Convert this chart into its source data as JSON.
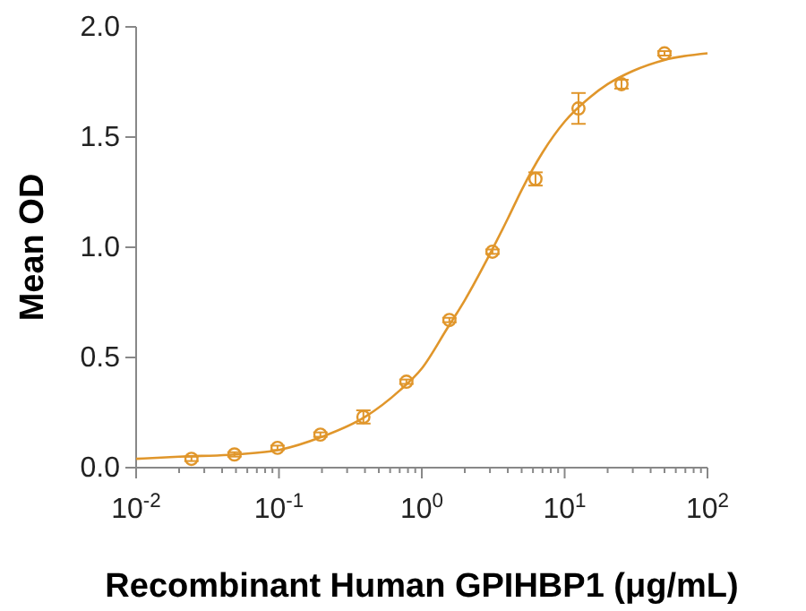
{
  "chart_data": {
    "type": "scatter",
    "xlabel": "Recombinant Human GPIHBP1 (μg/mL)",
    "ylabel": "Mean OD",
    "log": "x",
    "grid": false,
    "xlim": [
      0.01,
      100
    ],
    "ylim": [
      0,
      2
    ],
    "xticks": [
      {
        "value": 0.01,
        "label": "10$^{-2}$"
      },
      {
        "value": 0.02,
        "label": null
      },
      {
        "value": 0.03,
        "label": null
      },
      {
        "value": 0.04,
        "label": null
      },
      {
        "value": 0.05,
        "label": null
      },
      {
        "value": 0.06,
        "label": null
      },
      {
        "value": 0.07,
        "label": null
      },
      {
        "value": 0.08,
        "label": null
      },
      {
        "value": 0.09,
        "label": null
      },
      {
        "value": 0.1,
        "label": "10$^{-1}$"
      },
      {
        "value": 0.2,
        "label": null
      },
      {
        "value": 0.3,
        "label": null
      },
      {
        "value": 0.4,
        "label": null
      },
      {
        "value": 0.5,
        "label": null
      },
      {
        "value": 0.6,
        "label": null
      },
      {
        "value": 0.7,
        "label": null
      },
      {
        "value": 0.8,
        "label": null
      },
      {
        "value": 0.9,
        "label": null
      },
      {
        "value": 1,
        "label": "10$^{0}$"
      },
      {
        "value": 2,
        "label": null
      },
      {
        "value": 3,
        "label": null
      },
      {
        "value": 4,
        "label": null
      },
      {
        "value": 5,
        "label": null
      },
      {
        "value": 6,
        "label": null
      },
      {
        "value": 7,
        "label": null
      },
      {
        "value": 8,
        "label": null
      },
      {
        "value": 9,
        "label": null
      },
      {
        "value": 10,
        "label": "10$^{1}$"
      },
      {
        "value": 20,
        "label": null
      },
      {
        "value": 30,
        "label": null
      },
      {
        "value": 40,
        "label": null
      },
      {
        "value": 50,
        "label": null
      },
      {
        "value": 60,
        "label": null
      },
      {
        "value": 70,
        "label": null
      },
      {
        "value": 80,
        "label": null
      },
      {
        "value": 90,
        "label": null
      },
      {
        "value": 100,
        "label": "10$^{2}$"
      }
    ],
    "yticks": [
      {
        "value": 0,
        "label": "0.0"
      },
      0.5,
      {
        "value": 1,
        "label": "1.0"
      },
      1.5,
      {
        "value": 2,
        "label": "2.0"
      }
    ],
    "series": [
      {
        "type": "line",
        "color": "#e0962b",
        "marker": "none",
        "x": [
          0.01,
          0.02,
          0.05,
          0.1,
          0.2,
          0.4,
          0.7,
          1,
          1.5,
          2,
          3,
          4,
          5,
          7,
          10,
          15,
          20,
          30,
          50,
          100
        ],
        "values": [
          0.04,
          0.05,
          0.06,
          0.08,
          0.14,
          0.23,
          0.35,
          0.45,
          0.63,
          0.76,
          0.97,
          1.13,
          1.26,
          1.43,
          1.57,
          1.68,
          1.74,
          1.8,
          1.85,
          1.88
        ]
      },
      {
        "color": "#e0962b",
        "marker": "circle",
        "x": [
          0.0244,
          0.0488,
          0.0977,
          0.195,
          0.39,
          0.78,
          1.56,
          3.125,
          6.25,
          12.5,
          25,
          50
        ],
        "values": [
          0.04,
          0.06,
          0.09,
          0.15,
          0.23,
          0.39,
          0.67,
          0.98,
          1.31,
          1.63,
          1.74,
          1.88
        ],
        "errors": [
          0.01,
          0.01,
          0.01,
          0.01,
          0.03,
          0.01,
          0.01,
          0.01,
          0.03,
          0.07,
          0.02,
          0.01
        ]
      }
    ]
  }
}
